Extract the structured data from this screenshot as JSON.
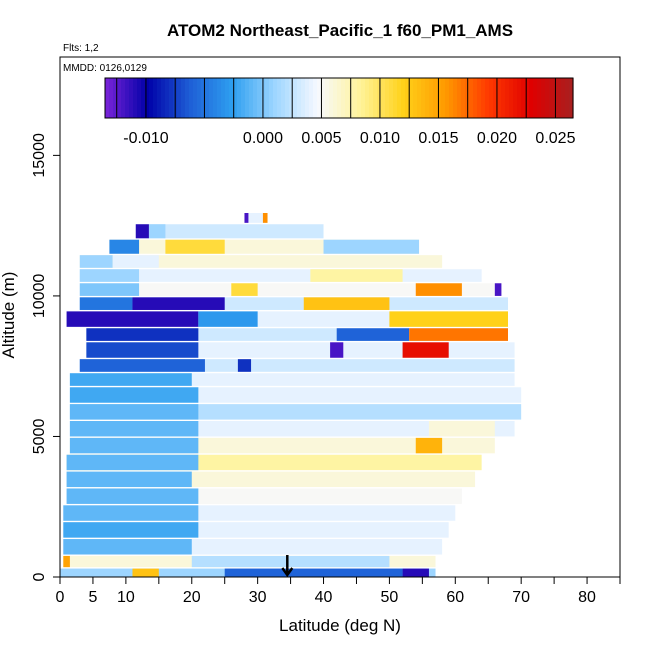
{
  "chart_data": {
    "type": "heatmap",
    "title": "ATOM2 Northeast_Pacific_1 f60_PM1_AMS",
    "subtitle_flights": "Flts: 1,2",
    "subtitle_dates": "MMDD: 0126,0129",
    "xlabel": "Latitude (deg N)",
    "ylabel": "Altitude (m)",
    "xlim": [
      0,
      85
    ],
    "ylim": [
      0,
      18500
    ],
    "x_ticks": [
      0,
      5,
      10,
      20,
      30,
      40,
      50,
      60,
      70,
      80
    ],
    "x_tick_labels": [
      "0",
      "5",
      "10",
      "20",
      "30",
      "40",
      "50",
      "60",
      "70",
      "80"
    ],
    "y_ticks": [
      0,
      5000,
      10000,
      15000
    ],
    "y_tick_labels": [
      "0",
      "5000",
      "10000",
      "15000"
    ],
    "colorbar": {
      "range": [
        -0.0135,
        0.0265
      ],
      "tick_values": [
        -0.01,
        0.0,
        0.005,
        0.01,
        0.015,
        0.02,
        0.025
      ],
      "tick_labels": [
        "-0.010",
        "0.000",
        "0.005",
        "0.010",
        "0.015",
        "0.020",
        "0.025"
      ],
      "colors": [
        "#7b24d9",
        "#0000a8",
        "#1e5fd6",
        "#2e9ff0",
        "#9ed6ff",
        "#f7f9ff",
        "#fff39a",
        "#ffd21a",
        "#ff9a00",
        "#ff3a00",
        "#e00000",
        "#a82020"
      ]
    },
    "marker": {
      "x": 34.5,
      "direction": "down"
    },
    "rows": [
      {
        "y0": 12600,
        "y1": 12950,
        "x0": 28,
        "x1": 31.5,
        "v": 0.004,
        "hot": [
          {
            "x0": 28,
            "x1": 28.6,
            "v": -0.012
          },
          {
            "x0": 30.8,
            "x1": 31.5,
            "v": 0.016
          }
        ]
      },
      {
        "y0": 12050,
        "y1": 12550,
        "x0": 11.5,
        "x1": 40,
        "v": 0.003,
        "hot": [
          {
            "x0": 11.5,
            "x1": 13.5,
            "v": -0.011
          },
          {
            "x0": 13.5,
            "x1": 16,
            "v": 0.001
          }
        ]
      },
      {
        "y0": 11500,
        "y1": 12000,
        "x0": 7.5,
        "x1": 54.5,
        "v": 0.006,
        "hot": [
          {
            "x0": 7.5,
            "x1": 12,
            "v": -0.004
          },
          {
            "x0": 16,
            "x1": 25,
            "v": 0.011
          },
          {
            "x0": 40,
            "x1": 54.5,
            "v": 0.001
          }
        ]
      },
      {
        "y0": 11000,
        "y1": 11450,
        "x0": 3,
        "x1": 58,
        "v": 0.006,
        "hot": [
          {
            "x0": 3,
            "x1": 8,
            "v": 0.001
          },
          {
            "x0": 8,
            "x1": 15,
            "v": 0.004
          }
        ]
      },
      {
        "y0": 10500,
        "y1": 10950,
        "x0": 3,
        "x1": 64,
        "v": 0.004,
        "hot": [
          {
            "x0": 3,
            "x1": 12,
            "v": 0.001
          },
          {
            "x0": 38,
            "x1": 52,
            "v": 0.008
          }
        ]
      },
      {
        "y0": 10000,
        "y1": 10450,
        "x0": 3,
        "x1": 67,
        "v": 0.005,
        "hot": [
          {
            "x0": 3,
            "x1": 12,
            "v": 0.0
          },
          {
            "x0": 26,
            "x1": 30,
            "v": 0.011
          },
          {
            "x0": 54,
            "x1": 61,
            "v": 0.016
          },
          {
            "x0": 66,
            "x1": 67,
            "v": -0.012
          }
        ]
      },
      {
        "y0": 9500,
        "y1": 9950,
        "x0": 3,
        "x1": 68,
        "v": 0.003,
        "hot": [
          {
            "x0": 3,
            "x1": 11,
            "v": -0.005
          },
          {
            "x0": 11,
            "x1": 25,
            "v": -0.011
          },
          {
            "x0": 37,
            "x1": 50,
            "v": 0.013
          }
        ]
      },
      {
        "y0": 8900,
        "y1": 9450,
        "x0": 1,
        "x1": 68,
        "v": 0.004,
        "hot": [
          {
            "x0": 1,
            "x1": 21,
            "v": -0.011
          },
          {
            "x0": 21,
            "x1": 30,
            "v": -0.003
          },
          {
            "x0": 50,
            "x1": 68,
            "v": 0.012
          }
        ]
      },
      {
        "y0": 8400,
        "y1": 8850,
        "x0": 4,
        "x1": 68,
        "v": 0.003,
        "hot": [
          {
            "x0": 4,
            "x1": 21,
            "v": -0.008
          },
          {
            "x0": 42,
            "x1": 53,
            "v": -0.006
          },
          {
            "x0": 53,
            "x1": 68,
            "v": 0.017
          }
        ]
      },
      {
        "y0": 7800,
        "y1": 8350,
        "x0": 4,
        "x1": 69,
        "v": 0.004,
        "hot": [
          {
            "x0": 4,
            "x1": 21,
            "v": -0.007
          },
          {
            "x0": 41,
            "x1": 43,
            "v": -0.012
          },
          {
            "x0": 52,
            "x1": 59,
            "v": 0.022
          }
        ]
      },
      {
        "y0": 7300,
        "y1": 7750,
        "x0": 3,
        "x1": 69,
        "v": 0.003,
        "hot": [
          {
            "x0": 3,
            "x1": 22,
            "v": -0.006
          },
          {
            "x0": 27,
            "x1": 29,
            "v": -0.008
          }
        ]
      },
      {
        "y0": 6800,
        "y1": 7250,
        "x0": 1.5,
        "x1": 69,
        "v": 0.004,
        "hot": [
          {
            "x0": 1.5,
            "x1": 20,
            "v": -0.002
          }
        ]
      },
      {
        "y0": 6200,
        "y1": 6750,
        "x0": 1.5,
        "x1": 70,
        "v": 0.004,
        "hot": [
          {
            "x0": 1.5,
            "x1": 21,
            "v": -0.002
          }
        ]
      },
      {
        "y0": 5600,
        "y1": 6150,
        "x0": 1.5,
        "x1": 70,
        "v": 0.002,
        "hot": [
          {
            "x0": 1.5,
            "x1": 21,
            "v": -0.001
          }
        ]
      },
      {
        "y0": 5000,
        "y1": 5550,
        "x0": 1.5,
        "x1": 69,
        "v": 0.004,
        "hot": [
          {
            "x0": 1.5,
            "x1": 21,
            "v": -0.001
          },
          {
            "x0": 56,
            "x1": 66,
            "v": 0.006
          }
        ]
      },
      {
        "y0": 4400,
        "y1": 4950,
        "x0": 1.5,
        "x1": 66,
        "v": 0.006,
        "hot": [
          {
            "x0": 1.5,
            "x1": 21,
            "v": -0.001
          },
          {
            "x0": 54,
            "x1": 58,
            "v": 0.014
          }
        ]
      },
      {
        "y0": 3800,
        "y1": 4350,
        "x0": 1,
        "x1": 64,
        "v": 0.008,
        "hot": [
          {
            "x0": 1,
            "x1": 21,
            "v": -0.001
          }
        ]
      },
      {
        "y0": 3200,
        "y1": 3750,
        "x0": 1,
        "x1": 63,
        "v": 0.006,
        "hot": [
          {
            "x0": 1,
            "x1": 20,
            "v": -0.001
          }
        ]
      },
      {
        "y0": 2600,
        "y1": 3150,
        "x0": 1,
        "x1": 61,
        "v": 0.005,
        "hot": [
          {
            "x0": 1,
            "x1": 21,
            "v": -0.001
          }
        ]
      },
      {
        "y0": 2000,
        "y1": 2550,
        "x0": 0.5,
        "x1": 60,
        "v": 0.004,
        "hot": [
          {
            "x0": 0.5,
            "x1": 21,
            "v": -0.001
          }
        ]
      },
      {
        "y0": 1400,
        "y1": 1950,
        "x0": 0.5,
        "x1": 59,
        "v": 0.004,
        "hot": [
          {
            "x0": 0.5,
            "x1": 21,
            "v": -0.002
          }
        ]
      },
      {
        "y0": 800,
        "y1": 1350,
        "x0": 0.5,
        "x1": 58,
        "v": 0.004,
        "hot": [
          {
            "x0": 0.5,
            "x1": 20,
            "v": -0.001
          }
        ]
      },
      {
        "y0": 350,
        "y1": 750,
        "x0": 0.5,
        "x1": 57,
        "v": 0.006,
        "hot": [
          {
            "x0": 0.5,
            "x1": 1.5,
            "v": 0.015
          },
          {
            "x0": 20,
            "x1": 50,
            "v": 0.002
          }
        ]
      },
      {
        "y0": 0,
        "y1": 300,
        "x0": 0,
        "x1": 57,
        "v": 0.001,
        "hot": [
          {
            "x0": 11,
            "x1": 15,
            "v": 0.013
          },
          {
            "x0": 25,
            "x1": 52,
            "v": -0.006
          },
          {
            "x0": 52,
            "x1": 56,
            "v": -0.011
          }
        ]
      }
    ]
  }
}
